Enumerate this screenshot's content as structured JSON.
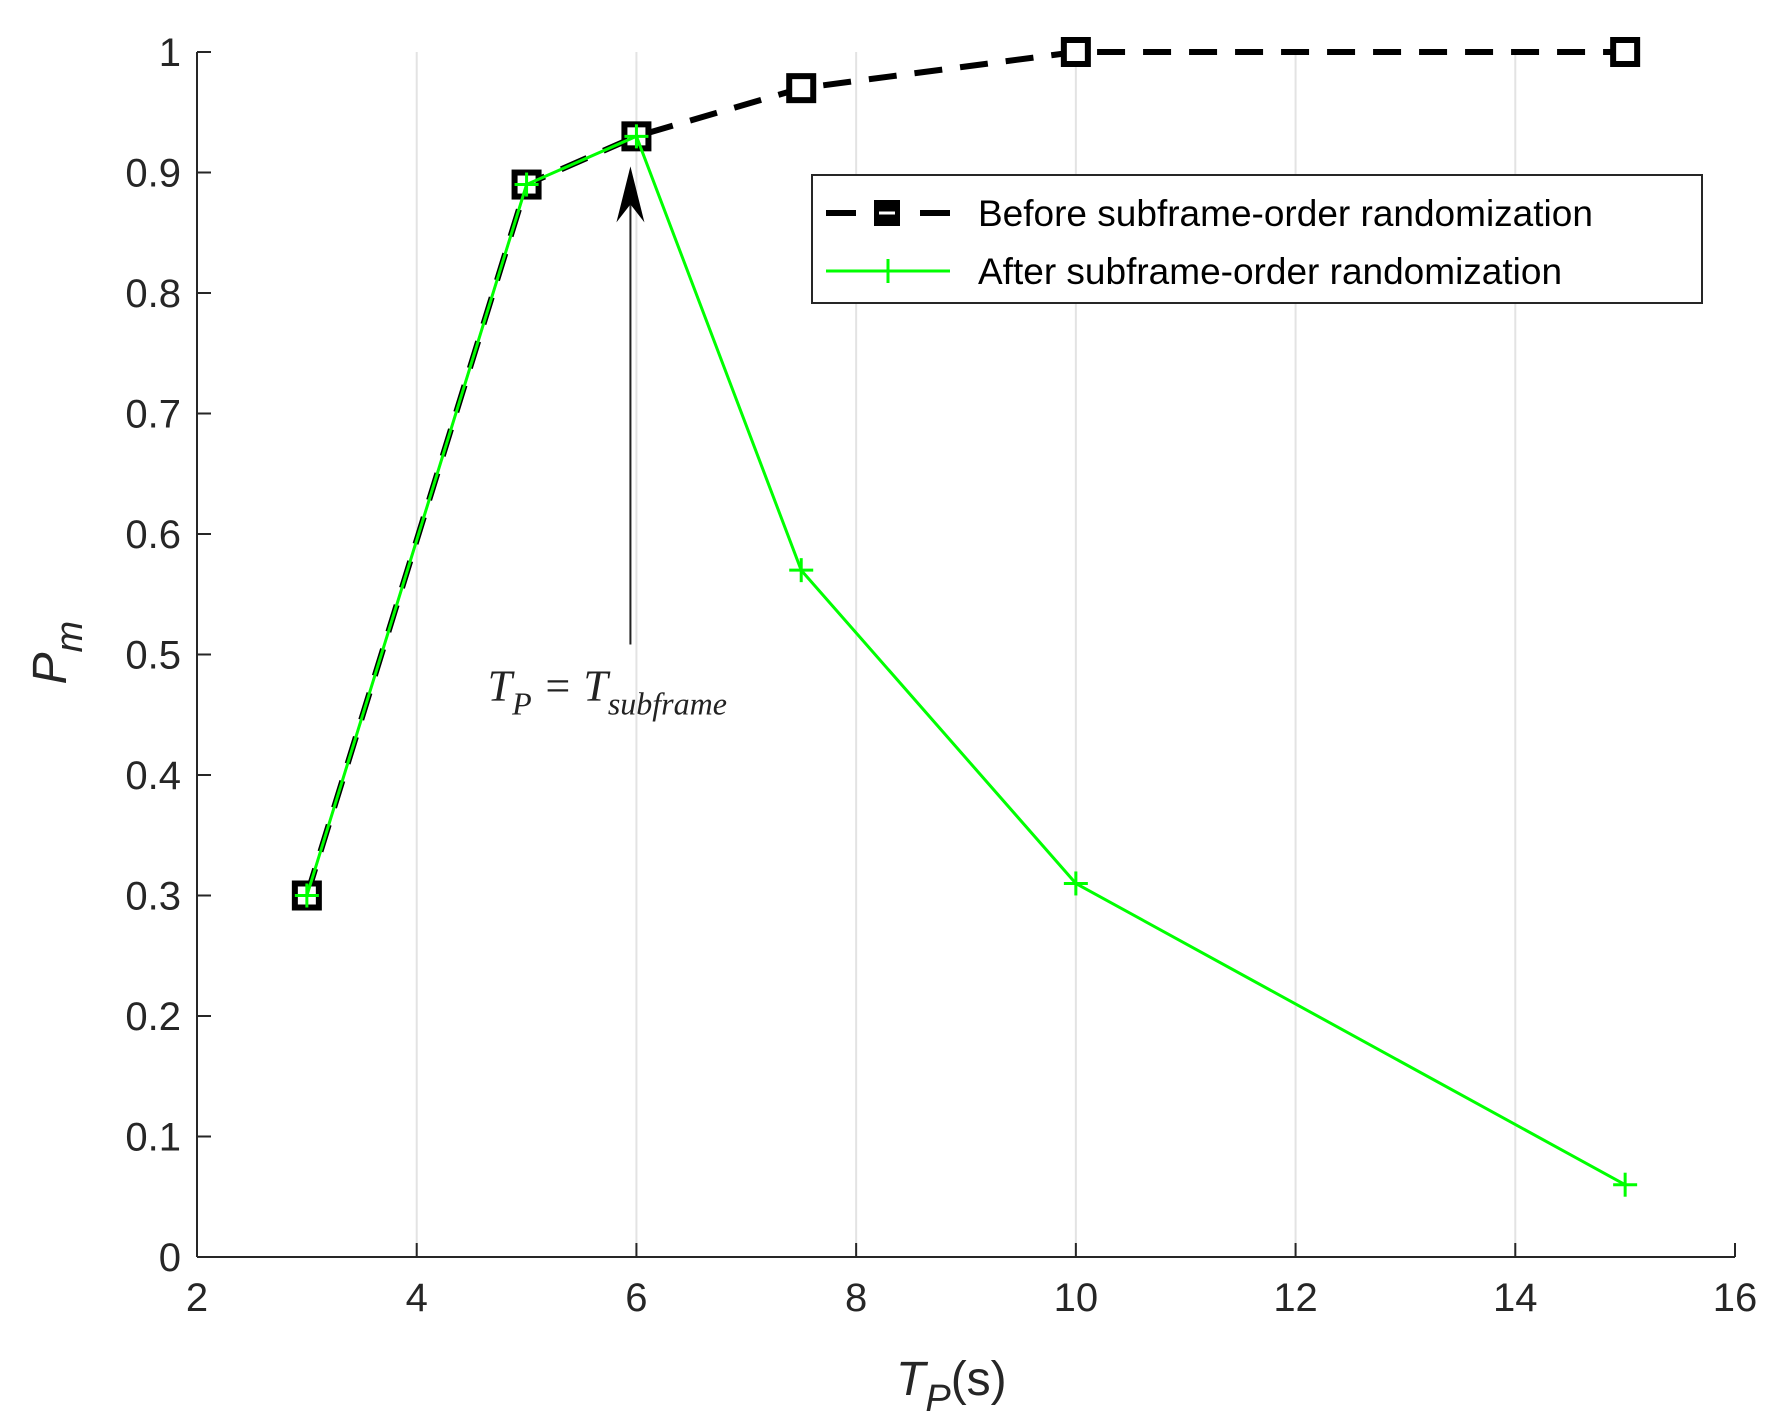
{
  "chart_data": {
    "type": "line",
    "title": "",
    "xlabel": {
      "main": "T",
      "sub": "P",
      "rest": "(s)"
    },
    "ylabel": {
      "main": "P",
      "sub": "m"
    },
    "xlim": [
      2,
      16
    ],
    "ylim": [
      0,
      1
    ],
    "x_ticks": [
      2,
      4,
      6,
      8,
      10,
      12,
      14,
      16
    ],
    "y_ticks": [
      0,
      0.1,
      0.2,
      0.3,
      0.4,
      0.5,
      0.6,
      0.7,
      0.8,
      0.9,
      1
    ],
    "x_grid": true,
    "y_grid": false,
    "legend_position": "top-right",
    "series": [
      {
        "name": "Before subframe-order randomization",
        "color": "#000000",
        "style": "dashed",
        "marker": "square",
        "x": [
          3,
          5,
          6,
          7.5,
          10,
          15
        ],
        "y": [
          0.3,
          0.89,
          0.93,
          0.97,
          1.0,
          1.0
        ]
      },
      {
        "name": "After subframe-order randomization",
        "color": "#00ff00",
        "style": "solid",
        "marker": "plus",
        "x": [
          3,
          5,
          6,
          7.5,
          10,
          15
        ],
        "y": [
          0.3,
          0.89,
          0.93,
          0.57,
          0.31,
          0.06
        ]
      }
    ],
    "annotation": {
      "text_main": "T",
      "text_sub1": "P",
      "text_mid": " = T",
      "text_sub2": "subframe",
      "arrow_to": {
        "x": 6,
        "y": 0.93
      },
      "text_at": {
        "x": 5.92,
        "y": 0.5
      }
    }
  }
}
